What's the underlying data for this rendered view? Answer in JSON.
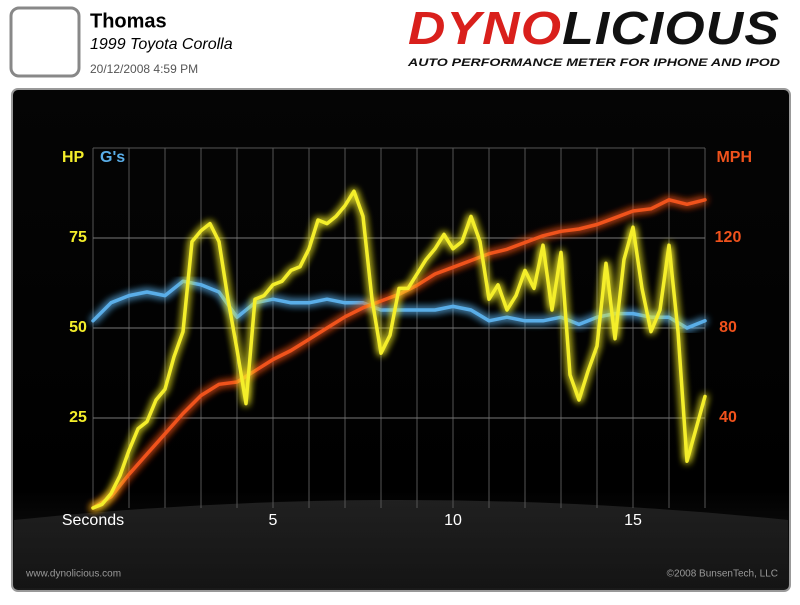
{
  "header": {
    "name": "Thomas",
    "car": "1999 Toyota Corolla",
    "date": "20/12/2008 4:59 PM",
    "logo_a": "DYNO",
    "logo_b": "LICIOUS",
    "tagline": "AUTO PERFORMANCE METER FOR IPHONE AND IPOD"
  },
  "chart_data": {
    "type": "line",
    "xlim": [
      0,
      17
    ],
    "xticks": [
      {
        "value": 0,
        "label": "Seconds"
      },
      5,
      10,
      15
    ],
    "xgrid": [
      0,
      1,
      2,
      3,
      4,
      5,
      6,
      7,
      8,
      9,
      10,
      11,
      12,
      13,
      14,
      15,
      16,
      17
    ],
    "ylim": [
      0,
      100
    ],
    "yticks": [
      25,
      50,
      75
    ],
    "y2lim": [
      0,
      160
    ],
    "y2ticks": [
      40,
      80,
      120
    ],
    "series": [
      {
        "name": "HP",
        "color": "#f4ee2a",
        "x": [
          0,
          0.25,
          0.5,
          0.75,
          1,
          1.25,
          1.5,
          1.75,
          2,
          2.25,
          2.5,
          2.75,
          3,
          3.25,
          3.5,
          3.75,
          4,
          4.25,
          4.5,
          4.75,
          5,
          5.25,
          5.5,
          5.75,
          6,
          6.25,
          6.5,
          6.75,
          7,
          7.25,
          7.5,
          7.75,
          8,
          8.25,
          8.5,
          8.75,
          9,
          9.25,
          9.5,
          9.75,
          10,
          10.25,
          10.5,
          10.75,
          11,
          11.25,
          11.5,
          11.75,
          12,
          12.25,
          12.5,
          12.75,
          13,
          13.25,
          13.5,
          13.75,
          14,
          14.25,
          14.5,
          14.75,
          15,
          15.25,
          15.5,
          15.75,
          16,
          16.25,
          16.5,
          16.75,
          17
        ],
        "values": [
          0,
          1,
          4,
          9,
          16,
          22,
          24,
          30,
          33,
          42,
          49,
          74,
          77,
          79,
          74,
          58,
          44,
          29,
          58,
          59,
          62,
          63,
          66,
          67,
          72,
          80,
          79,
          81,
          84,
          88,
          81,
          58,
          43,
          48,
          61,
          61,
          65,
          69,
          72,
          76,
          72,
          74,
          81,
          74,
          58,
          62,
          55,
          59,
          66,
          61,
          73,
          55,
          71,
          37,
          30,
          38,
          45,
          68,
          47,
          69,
          78,
          61,
          49,
          55,
          73,
          49,
          13,
          22,
          31
        ]
      },
      {
        "name": "G's",
        "color": "#5aaee8",
        "x": [
          0,
          0.5,
          1,
          1.5,
          2,
          2.5,
          3,
          3.5,
          4,
          4.5,
          5,
          5.5,
          6,
          6.5,
          7,
          7.5,
          8,
          8.5,
          9,
          9.5,
          10,
          10.5,
          11,
          11.5,
          12,
          12.5,
          13,
          13.5,
          14,
          14.5,
          15,
          15.5,
          16,
          16.5,
          17
        ],
        "values": [
          52,
          57,
          59,
          60,
          59,
          63,
          62,
          60,
          53,
          57,
          58,
          57,
          57,
          58,
          57,
          57,
          55,
          55,
          55,
          55,
          56,
          55,
          52,
          53,
          52,
          52,
          53,
          51,
          53,
          54,
          54,
          53,
          53,
          50,
          52
        ]
      },
      {
        "name": "MPH",
        "color": "#f0521c",
        "axis": "y2",
        "x": [
          0,
          0.5,
          1,
          1.5,
          2,
          2.5,
          3,
          3.5,
          4,
          4.5,
          5,
          5.5,
          6,
          6.5,
          7,
          7.5,
          8,
          8.5,
          9,
          9.5,
          10,
          10.5,
          11,
          11.5,
          12,
          12.5,
          13,
          13.5,
          14,
          14.5,
          15,
          15.5,
          16,
          16.5,
          17
        ],
        "values": [
          0,
          5,
          15,
          24,
          33,
          42,
          50,
          55,
          56,
          61,
          66,
          70,
          75,
          80,
          85,
          89,
          92,
          95,
          99,
          104,
          107,
          110,
          113,
          115,
          118,
          121,
          123,
          124,
          126,
          129,
          132,
          133,
          137,
          135,
          137
        ]
      }
    ]
  },
  "footer": {
    "left": "www.dynolicious.com",
    "right": "©2008 BunsenTech, LLC"
  }
}
